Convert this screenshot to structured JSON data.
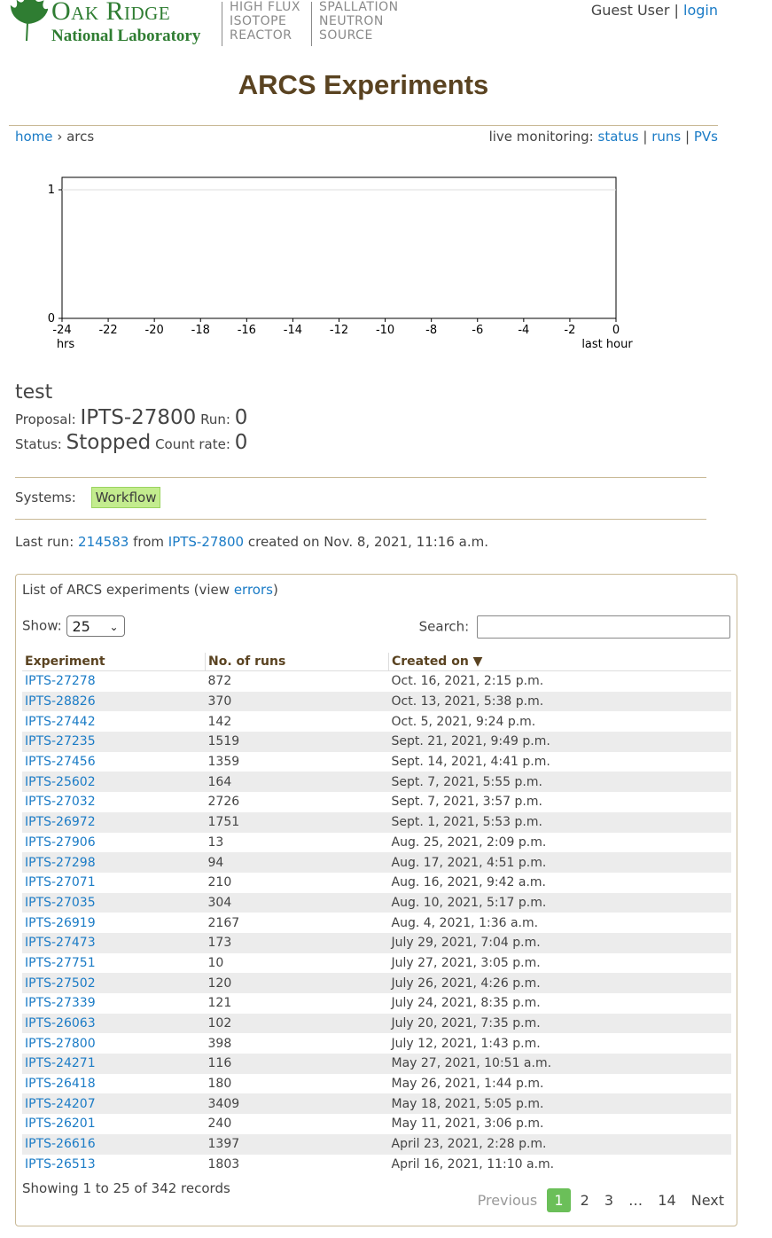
{
  "header": {
    "org_title": "Oak Ridge",
    "org_subtitle": "National Laboratory",
    "facility1": [
      "HIGH FLUX",
      "ISOTOPE",
      "REACTOR"
    ],
    "facility2": [
      "SPALLATION",
      "NEUTRON",
      "SOURCE"
    ],
    "user": "Guest User",
    "separator": "|",
    "login": "login"
  },
  "page_title": "ARCS Experiments",
  "breadcrumb": {
    "home": "home",
    "sep": "›",
    "current": "arcs"
  },
  "live": {
    "label": "live monitoring:",
    "status": "status",
    "runs": "runs",
    "pvs": "PVs",
    "sep": "|"
  },
  "chart_data": {
    "type": "line",
    "x_ticks": [
      "-24",
      "-22",
      "-20",
      "-18",
      "-16",
      "-14",
      "-12",
      "-10",
      "-8",
      "-6",
      "-4",
      "-2",
      "0"
    ],
    "y_ticks": [
      "0",
      "1"
    ],
    "x_label_left": "hrs",
    "x_label_right": "last hour",
    "xlim": [
      -24,
      0
    ],
    "ylim": [
      0,
      1
    ],
    "series": [],
    "grid": true
  },
  "run": {
    "name": "test",
    "proposal_label": "Proposal:",
    "proposal": "IPTS-27800",
    "run_label": "Run:",
    "run": "0",
    "status_label": "Status:",
    "status": "Stopped",
    "rate_label": "Count rate:",
    "rate": "0"
  },
  "systems": {
    "label": "Systems:",
    "badge": "Workflow"
  },
  "last_run": {
    "prefix": "Last run:",
    "run": "214583",
    "from": "from",
    "ipts": "IPTS-27800",
    "suffix": "created on Nov. 8, 2021, 11:16 a.m."
  },
  "panel": {
    "title_prefix": "List of ARCS experiments (view",
    "errors": "errors",
    "title_suffix": ")",
    "show_label": "Show:",
    "show_value": "25",
    "search_label": "Search:",
    "columns": [
      "Experiment",
      "No. of runs",
      "Created on ▼"
    ],
    "rows": [
      [
        "IPTS-27278",
        "872",
        "Oct. 16, 2021, 2:15 p.m."
      ],
      [
        "IPTS-28826",
        "370",
        "Oct. 13, 2021, 5:38 p.m."
      ],
      [
        "IPTS-27442",
        "142",
        "Oct. 5, 2021, 9:24 p.m."
      ],
      [
        "IPTS-27235",
        "1519",
        "Sept. 21, 2021, 9:49 p.m."
      ],
      [
        "IPTS-27456",
        "1359",
        "Sept. 14, 2021, 4:41 p.m."
      ],
      [
        "IPTS-25602",
        "164",
        "Sept. 7, 2021, 5:55 p.m."
      ],
      [
        "IPTS-27032",
        "2726",
        "Sept. 7, 2021, 3:57 p.m."
      ],
      [
        "IPTS-26972",
        "1751",
        "Sept. 1, 2021, 5:53 p.m."
      ],
      [
        "IPTS-27906",
        "13",
        "Aug. 25, 2021, 2:09 p.m."
      ],
      [
        "IPTS-27298",
        "94",
        "Aug. 17, 2021, 4:51 p.m."
      ],
      [
        "IPTS-27071",
        "210",
        "Aug. 16, 2021, 9:42 a.m."
      ],
      [
        "IPTS-27035",
        "304",
        "Aug. 10, 2021, 5:17 p.m."
      ],
      [
        "IPTS-26919",
        "2167",
        "Aug. 4, 2021, 1:36 a.m."
      ],
      [
        "IPTS-27473",
        "173",
        "July 29, 2021, 7:04 p.m."
      ],
      [
        "IPTS-27751",
        "10",
        "July 27, 2021, 3:05 p.m."
      ],
      [
        "IPTS-27502",
        "120",
        "July 26, 2021, 4:26 p.m."
      ],
      [
        "IPTS-27339",
        "121",
        "July 24, 2021, 8:35 p.m."
      ],
      [
        "IPTS-26063",
        "102",
        "July 20, 2021, 7:35 p.m."
      ],
      [
        "IPTS-27800",
        "398",
        "July 12, 2021, 1:43 p.m."
      ],
      [
        "IPTS-24271",
        "116",
        "May 27, 2021, 10:51 a.m."
      ],
      [
        "IPTS-26418",
        "180",
        "May 26, 2021, 1:44 p.m."
      ],
      [
        "IPTS-24207",
        "3409",
        "May 18, 2021, 5:05 p.m."
      ],
      [
        "IPTS-26201",
        "240",
        "May 11, 2021, 3:06 p.m."
      ],
      [
        "IPTS-26616",
        "1397",
        "April 23, 2021, 2:28 p.m."
      ],
      [
        "IPTS-26513",
        "1803",
        "April 16, 2021, 11:10 a.m."
      ]
    ],
    "showing": "Showing 1 to 25 of 342 records",
    "pager": {
      "previous": "Previous",
      "pages": [
        "1",
        "2",
        "3",
        "…",
        "14"
      ],
      "next": "Next"
    }
  },
  "colors": {
    "link": "#1a7bc6",
    "brand_green": "#2f7d32",
    "title_brown": "#5a4321",
    "badge_green": "#c3ec8e",
    "pager_active": "#6bbf59"
  }
}
